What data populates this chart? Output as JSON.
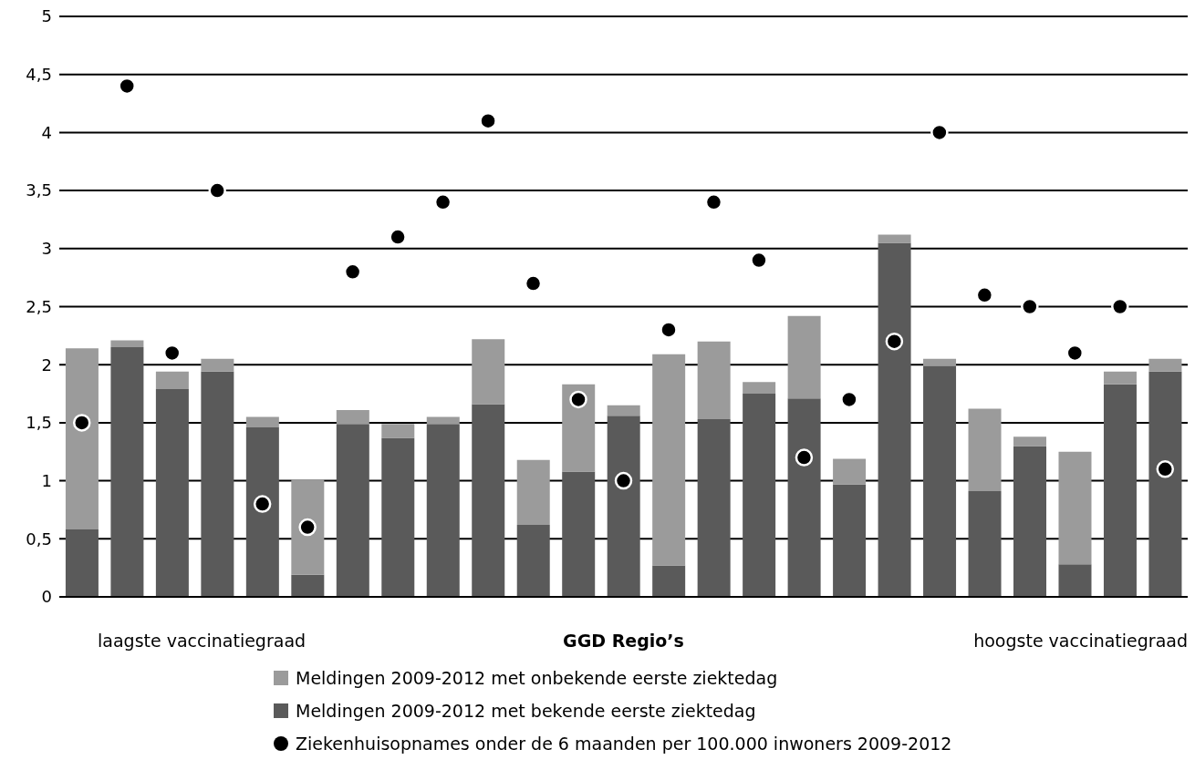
{
  "chart_data": {
    "type": "bar",
    "stacked": true,
    "xlabel": "GGD Regio’s",
    "categories": [
      null,
      null,
      null,
      null,
      null,
      null,
      null,
      null,
      null,
      null,
      null,
      null,
      null,
      null,
      null,
      null,
      null,
      null,
      null,
      null,
      null,
      null,
      null,
      null,
      null
    ],
    "series": [
      {
        "name": "Meldingen 2009-2012 met bekende eerste ziektedag",
        "color": "#5a5a5a",
        "values": [
          0.58,
          2.15,
          1.79,
          1.94,
          1.46,
          0.19,
          1.49,
          1.37,
          1.49,
          1.66,
          0.62,
          1.08,
          1.56,
          0.27,
          1.53,
          1.75,
          1.71,
          0.97,
          3.05,
          1.99,
          0.91,
          1.3,
          0.28,
          1.83,
          1.94
        ]
      },
      {
        "name": "Meldingen 2009-2012 met onbekende eerste ziektedag",
        "color": "#9b9b9b",
        "values": [
          1.56,
          0.06,
          0.15,
          0.11,
          0.09,
          0.82,
          0.12,
          0.12,
          0.06,
          0.56,
          0.56,
          0.75,
          0.09,
          1.82,
          0.67,
          0.1,
          0.71,
          0.22,
          0.07,
          0.06,
          0.71,
          0.08,
          0.97,
          0.11,
          0.11
        ]
      },
      {
        "name": "Ziekenhuisopnames onder de 6 maanden per 100.000 inwoners 2009-2012",
        "type": "scatter",
        "color": "#000000",
        "values": [
          1.5,
          4.4,
          2.1,
          3.5,
          0.8,
          0.6,
          2.8,
          3.1,
          3.4,
          4.1,
          2.7,
          1.7,
          1.0,
          2.3,
          3.4,
          2.9,
          1.2,
          1.7,
          2.2,
          4.0,
          2.6,
          2.5,
          2.1,
          2.5,
          1.1
        ]
      }
    ],
    "ylim": [
      0,
      5
    ],
    "yticks": [
      0,
      {
        "value": 0.5,
        "label": "0,5"
      },
      1,
      {
        "value": 1.5,
        "label": "1,5"
      },
      2,
      {
        "value": 2.5,
        "label": "2,5"
      },
      3,
      {
        "value": 3.5,
        "label": "3,5"
      },
      4,
      {
        "value": 4.5,
        "label": "4,5"
      },
      5
    ],
    "grid": "y",
    "legend": "bottom",
    "marker": "circle",
    "annotations": [
      "laagste vaccinatiegraad",
      "hoogste vaccinatiegraad"
    ]
  }
}
